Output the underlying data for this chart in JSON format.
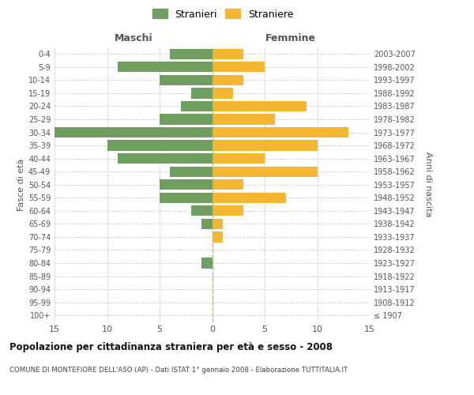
{
  "age_groups": [
    "100+",
    "95-99",
    "90-94",
    "85-89",
    "80-84",
    "75-79",
    "70-74",
    "65-69",
    "60-64",
    "55-59",
    "50-54",
    "45-49",
    "40-44",
    "35-39",
    "30-34",
    "25-29",
    "20-24",
    "15-19",
    "10-14",
    "5-9",
    "0-4"
  ],
  "birth_years": [
    "≤ 1907",
    "1908-1912",
    "1913-1917",
    "1918-1922",
    "1923-1927",
    "1928-1932",
    "1933-1937",
    "1938-1942",
    "1943-1947",
    "1948-1952",
    "1953-1957",
    "1958-1962",
    "1963-1967",
    "1968-1972",
    "1973-1977",
    "1978-1982",
    "1983-1987",
    "1988-1992",
    "1993-1997",
    "1998-2002",
    "2003-2007"
  ],
  "males": [
    0,
    0,
    0,
    0,
    1,
    0,
    0,
    1,
    2,
    5,
    5,
    4,
    9,
    10,
    15,
    5,
    3,
    2,
    5,
    9,
    4
  ],
  "females": [
    0,
    0,
    0,
    0,
    0,
    0,
    1,
    1,
    3,
    7,
    3,
    10,
    5,
    10,
    13,
    6,
    9,
    2,
    3,
    5,
    3
  ],
  "male_color": "#6e9f60",
  "female_color": "#f5b731",
  "title": "Popolazione per cittadinanza straniera per età e sesso - 2008",
  "subtitle": "COMUNE DI MONTEFIORE DELL'ASO (AP) - Dati ISTAT 1° gennaio 2008 - Elaborazione TUTTITALIA.IT",
  "xlabel_left": "Maschi",
  "xlabel_right": "Femmine",
  "ylabel_left": "Fasce di età",
  "ylabel_right": "Anni di nascita",
  "legend_male": "Stranieri",
  "legend_female": "Straniere",
  "xlim": 15,
  "background_color": "#ffffff",
  "grid_color": "#cccccc"
}
